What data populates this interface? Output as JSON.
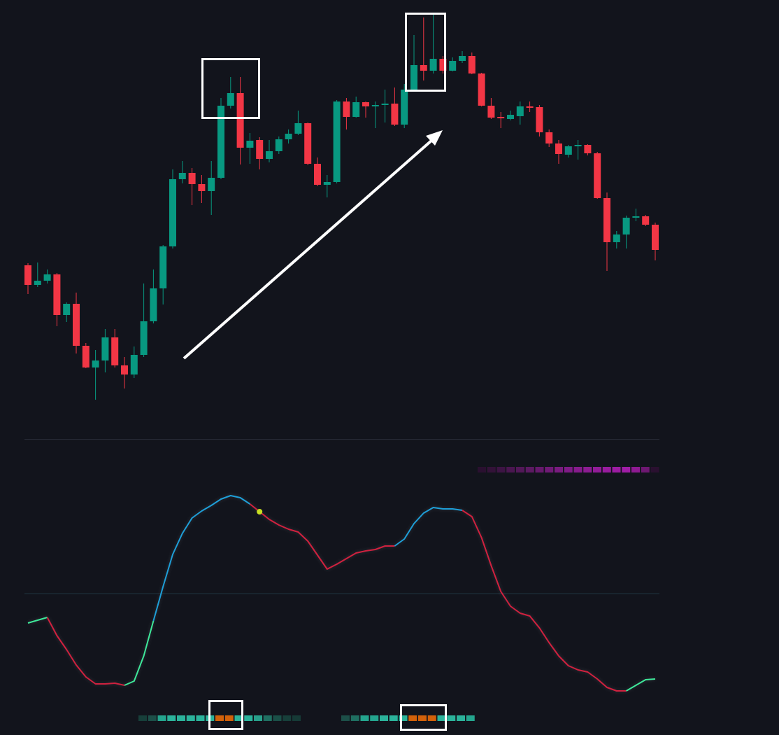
{
  "chart_data": [
    {
      "type": "candlestick",
      "up_color": "#089981",
      "down_color": "#f23645",
      "ylim": [
        0,
        620
      ],
      "open": [
        241,
        213,
        219,
        228,
        170,
        186,
        126,
        95,
        105,
        138,
        98,
        85,
        113,
        161,
        208,
        268,
        364,
        373,
        357,
        347,
        366,
        469,
        487,
        409,
        420,
        393,
        404,
        421,
        429,
        444,
        386,
        356,
        360,
        475,
        453,
        474,
        468,
        470,
        472,
        442,
        492,
        527,
        519,
        536,
        519,
        533,
        540,
        515,
        469,
        453,
        450,
        454,
        468,
        467,
        431,
        415,
        399,
        411,
        413,
        401,
        337,
        274,
        285,
        309,
        311,
        299
      ],
      "high": [
        244,
        245,
        235,
        230,
        188,
        202,
        130,
        120,
        150,
        150,
        110,
        125,
        215,
        235,
        270,
        378,
        390,
        380,
        370,
        390,
        480,
        510,
        510,
        430,
        424,
        420,
        425,
        435,
        462,
        445,
        395,
        370,
        477,
        480,
        482,
        475,
        475,
        492,
        495,
        500,
        570,
        595,
        600,
        540,
        538,
        547,
        545,
        516,
        480,
        460,
        462,
        475,
        475,
        470,
        435,
        420,
        413,
        420,
        414,
        403,
        345,
        290,
        312,
        322,
        313,
        302
      ],
      "low": [
        200,
        210,
        215,
        154,
        160,
        115,
        94,
        49,
        88,
        95,
        65,
        80,
        110,
        158,
        185,
        265,
        358,
        327,
        330,
        313,
        364,
        465,
        385,
        386,
        378,
        388,
        400,
        415,
        427,
        384,
        354,
        338,
        358,
        435,
        452,
        452,
        437,
        445,
        440,
        437,
        490,
        505,
        515,
        515,
        518,
        530,
        514,
        468,
        450,
        437,
        448,
        442,
        460,
        425,
        410,
        386,
        395,
        392,
        398,
        336,
        233,
        265,
        265,
        304,
        297,
        248
      ],
      "close": [
        213,
        219,
        228,
        170,
        186,
        126,
        95,
        105,
        138,
        98,
        85,
        113,
        161,
        208,
        268,
        364,
        373,
        357,
        347,
        366,
        469,
        487,
        409,
        419,
        393,
        404,
        421,
        429,
        444,
        386,
        356,
        360,
        475,
        453,
        474,
        468,
        470,
        472,
        442,
        492,
        527,
        519,
        536,
        519,
        533,
        540,
        515,
        469,
        452,
        451,
        456,
        468,
        466,
        431,
        415,
        400,
        411,
        413,
        401,
        337,
        274,
        285,
        309,
        311,
        299,
        263
      ]
    },
    {
      "type": "oscillator",
      "ylim": [
        0,
        372
      ],
      "midline": 152,
      "values": [
        110,
        114,
        118,
        92,
        72,
        50,
        33,
        23,
        23,
        24,
        21,
        27,
        63,
        113,
        162,
        208,
        238,
        260,
        270,
        278,
        287,
        292,
        289,
        280,
        269,
        258,
        250,
        244,
        240,
        227,
        207,
        187,
        194,
        202,
        210,
        213,
        215,
        220,
        220,
        230,
        252,
        267,
        275,
        273,
        273,
        271,
        262,
        232,
        192,
        155,
        134,
        124,
        120,
        103,
        82,
        63,
        49,
        43,
        40,
        30,
        18,
        13,
        13,
        21,
        29,
        30
      ],
      "colors": [
        "#3ee89a",
        "#3ee89a",
        "#3ee89a",
        "#d0213f",
        "#d0213f",
        "#d0213f",
        "#d0213f",
        "#d0213f",
        "#d0213f",
        "#d0213f",
        "#d0213f",
        "#3ee89a",
        "#3ee89a",
        "#3ee89a",
        "#1e9fd8",
        "#1e9fd8",
        "#1e9fd8",
        "#1e9fd8",
        "#1e9fd8",
        "#1e9fd8",
        "#1e9fd8",
        "#1e9fd8",
        "#1e9fd8",
        "#1e9fd8",
        "#d0213f",
        "#d0213f",
        "#d0213f",
        "#d0213f",
        "#d0213f",
        "#d0213f",
        "#d0213f",
        "#d0213f",
        "#d0213f",
        "#d0213f",
        "#d0213f",
        "#d0213f",
        "#d0213f",
        "#d0213f",
        "#d0213f",
        "#1e9fd8",
        "#1e9fd8",
        "#1e9fd8",
        "#1e9fd8",
        "#1e9fd8",
        "#1e9fd8",
        "#1e9fd8",
        "#d0213f",
        "#d0213f",
        "#d0213f",
        "#d0213f",
        "#d0213f",
        "#d0213f",
        "#d0213f",
        "#d0213f",
        "#d0213f",
        "#d0213f",
        "#d0213f",
        "#d0213f",
        "#d0213f",
        "#d0213f",
        "#d0213f",
        "#d0213f",
        "#d0213f",
        "#3ee89a",
        "#3ee89a",
        "#3ee89a"
      ],
      "signal": {
        "index": 24,
        "color": "#c8e021"
      },
      "bands": [
        {
          "colors": [
            "#2a1030",
            "#331238",
            "#3d1444",
            "#4a1650",
            "#521858",
            "#5c1a62",
            "#66196c",
            "#701a76",
            "#7a1b80",
            "#7f1b86",
            "#861b8c",
            "#8c1c92",
            "#921c98",
            "#981c9e",
            "#9c1ca2",
            "#a01da6",
            "#8e1a92",
            "#6e1872",
            "#2a1030"
          ]
        },
        {
          "colors": [
            "#173f3a",
            "#1c4f48",
            "#24a58e",
            "#2bb39b",
            "#2bb39b",
            "#2bb39b",
            "#2bb39b",
            "#2bb39b",
            "#d2610a",
            "#d2610a",
            "#2bb39b",
            "#2bb39b",
            "#28a08b",
            "#1f6f61",
            "#1a4f47",
            "#173f3a",
            "#163a36"
          ]
        },
        {
          "colors": [
            "#1c4f48",
            "#1f6f61",
            "#24a58e",
            "#24a58e",
            "#2bb39b",
            "#2bb39b",
            "#2bb39b",
            "#d2610a",
            "#d2610a",
            "#d2610a",
            "#2bb39b",
            "#2bb39b",
            "#2bb39b",
            "#24a58e"
          ]
        }
      ]
    }
  ]
}
